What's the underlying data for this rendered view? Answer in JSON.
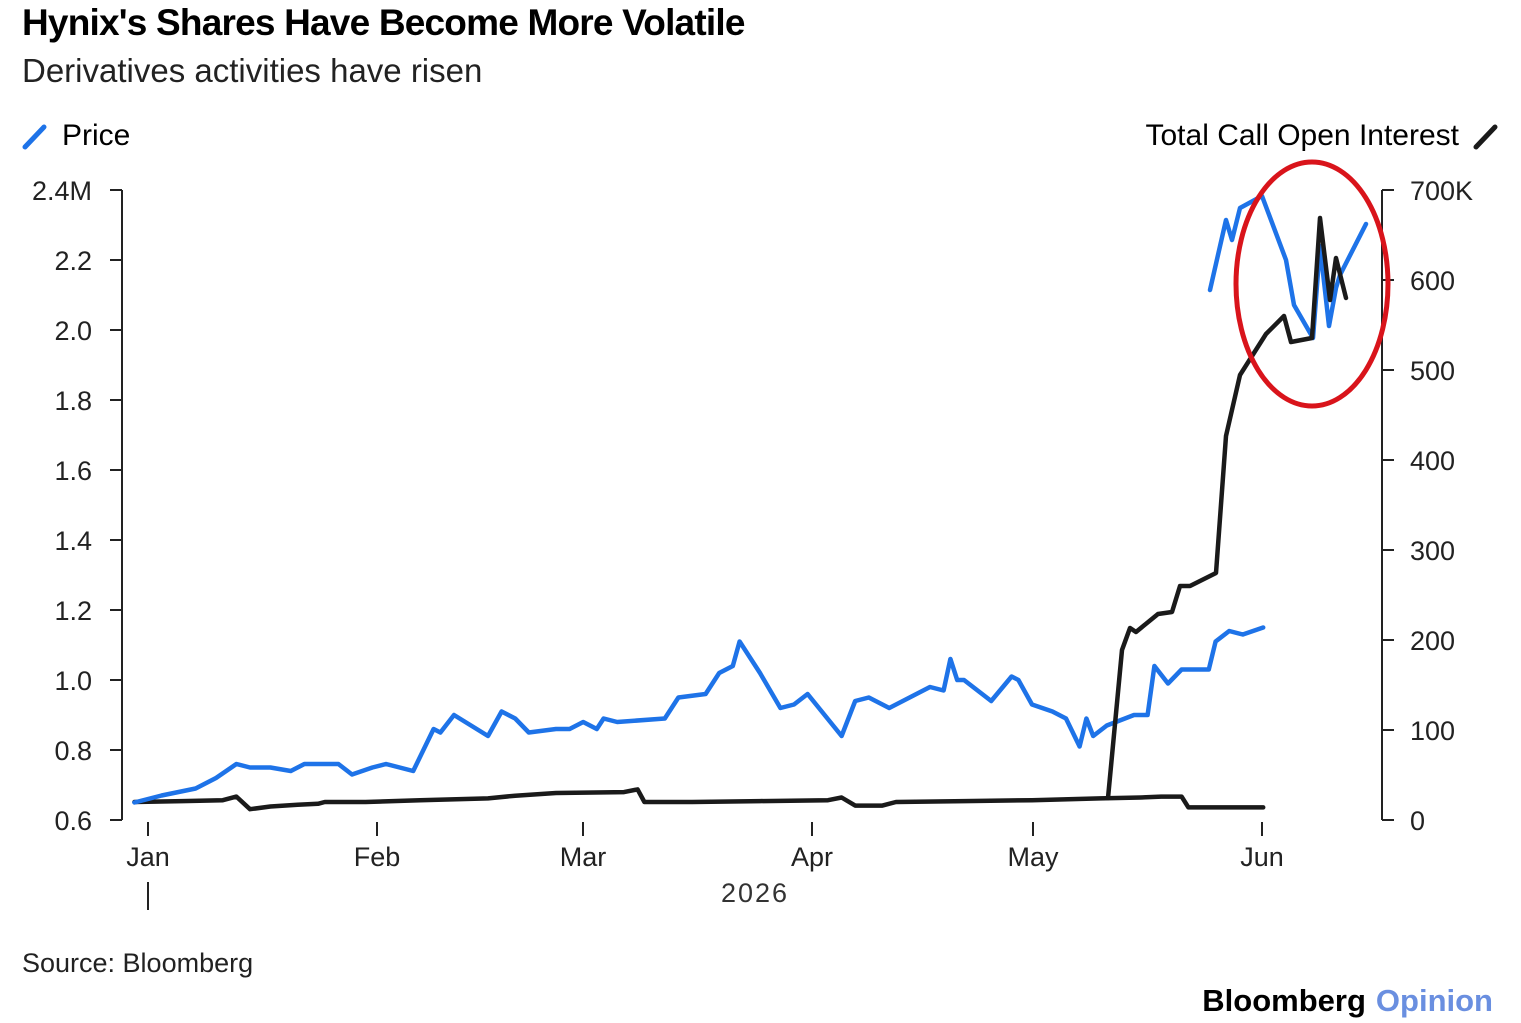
{
  "title": "Hynix's Shares Have Become More Volatile",
  "subtitle": "Derivatives activities have risen",
  "source": "Source: Bloomberg",
  "brand": {
    "name": "Bloomberg",
    "section": "Opinion"
  },
  "colors": {
    "price": "#1e73e8",
    "open_interest": "#1a1a1a",
    "annotation": "#d9141b"
  },
  "chart_data": {
    "type": "line",
    "xlabel": "2026",
    "x_ticks": [
      "Jan",
      "Feb",
      "Mar",
      "Apr",
      "May",
      "Jun"
    ],
    "x_range_days": [
      0,
      164
    ],
    "y_left": {
      "label": "Price",
      "ticks": [
        "0.6",
        "0.8",
        "1.0",
        "1.2",
        "1.4",
        "1.6",
        "1.8",
        "2.0",
        "2.2",
        "2.4M"
      ],
      "range": [
        0.6,
        2.4
      ]
    },
    "y_right": {
      "label": "Total Call Open Interest",
      "ticks": [
        "0",
        "100",
        "200",
        "300",
        "400",
        "500",
        "600",
        "700K"
      ],
      "range": [
        0,
        700
      ]
    },
    "legend": {
      "left": "Price",
      "right": "Total Call Open Interest"
    },
    "annotation": "circle around June data",
    "series": [
      {
        "name": "Price",
        "axis": "left",
        "points": [
          [
            -2,
            0.65
          ],
          [
            2,
            0.67
          ],
          [
            7,
            0.69
          ],
          [
            10,
            0.72
          ],
          [
            13,
            0.76
          ],
          [
            15,
            0.75
          ],
          [
            18,
            0.75
          ],
          [
            21,
            0.74
          ],
          [
            23,
            0.76
          ],
          [
            28,
            0.76
          ],
          [
            30,
            0.73
          ],
          [
            33,
            0.75
          ],
          [
            35,
            0.76
          ],
          [
            39,
            0.74
          ],
          [
            42,
            0.86
          ],
          [
            43,
            0.85
          ],
          [
            45,
            0.9
          ],
          [
            50,
            0.84
          ],
          [
            52,
            0.91
          ],
          [
            54,
            0.89
          ],
          [
            56,
            0.85
          ],
          [
            60,
            0.86
          ],
          [
            62,
            0.86
          ],
          [
            64,
            0.88
          ],
          [
            66,
            0.86
          ],
          [
            67,
            0.89
          ],
          [
            69,
            0.88
          ],
          [
            76,
            0.89
          ],
          [
            78,
            0.95
          ],
          [
            82,
            0.96
          ],
          [
            84,
            1.02
          ],
          [
            86,
            1.04
          ],
          [
            87,
            1.11
          ],
          [
            90,
            1.02
          ],
          [
            93,
            0.92
          ],
          [
            95,
            0.93
          ],
          [
            97,
            0.96
          ],
          [
            102,
            0.84
          ],
          [
            104,
            0.94
          ],
          [
            106,
            0.95
          ],
          [
            109,
            0.92
          ],
          [
            113,
            0.96
          ],
          [
            115,
            0.98
          ],
          [
            117,
            0.97
          ],
          [
            118,
            1.06
          ],
          [
            119,
            1.0
          ],
          [
            120,
            1.0
          ],
          [
            124,
            0.94
          ],
          [
            127,
            1.01
          ],
          [
            128,
            1.0
          ],
          [
            130,
            0.93
          ],
          [
            133,
            0.91
          ],
          [
            135,
            0.89
          ],
          [
            137,
            0.81
          ],
          [
            138,
            0.89
          ],
          [
            139,
            0.84
          ],
          [
            141,
            0.87
          ],
          [
            145,
            0.9
          ],
          [
            147,
            0.9
          ],
          [
            148,
            1.04
          ],
          [
            150,
            0.99
          ],
          [
            152,
            1.03
          ],
          [
            156,
            1.03
          ],
          [
            157,
            1.11
          ],
          [
            159,
            1.14
          ],
          [
            161,
            1.13
          ],
          [
            164,
            1.15
          ]
        ]
      },
      {
        "name": "Total Call Open Interest",
        "axis": "right",
        "points": [
          [
            -2,
            20
          ],
          [
            5,
            21
          ],
          [
            11,
            22
          ],
          [
            13,
            26
          ],
          [
            15,
            12
          ],
          [
            18,
            15
          ],
          [
            22,
            17
          ],
          [
            25,
            18
          ],
          [
            26,
            20
          ],
          [
            32,
            20
          ],
          [
            40,
            22
          ],
          [
            50,
            24
          ],
          [
            54,
            27
          ],
          [
            60,
            30
          ],
          [
            70,
            31
          ],
          [
            72,
            34
          ],
          [
            73,
            20
          ],
          [
            80,
            20
          ],
          [
            90,
            21
          ],
          [
            100,
            22
          ],
          [
            102,
            25
          ],
          [
            104,
            16
          ],
          [
            108,
            16
          ],
          [
            110,
            20
          ],
          [
            120,
            21
          ],
          [
            130,
            22
          ],
          [
            140,
            24
          ],
          [
            146,
            25
          ],
          [
            149,
            26
          ],
          [
            152,
            26
          ],
          [
            153,
            14
          ],
          [
            160,
            14
          ],
          [
            164,
            14
          ]
        ]
      }
    ]
  }
}
